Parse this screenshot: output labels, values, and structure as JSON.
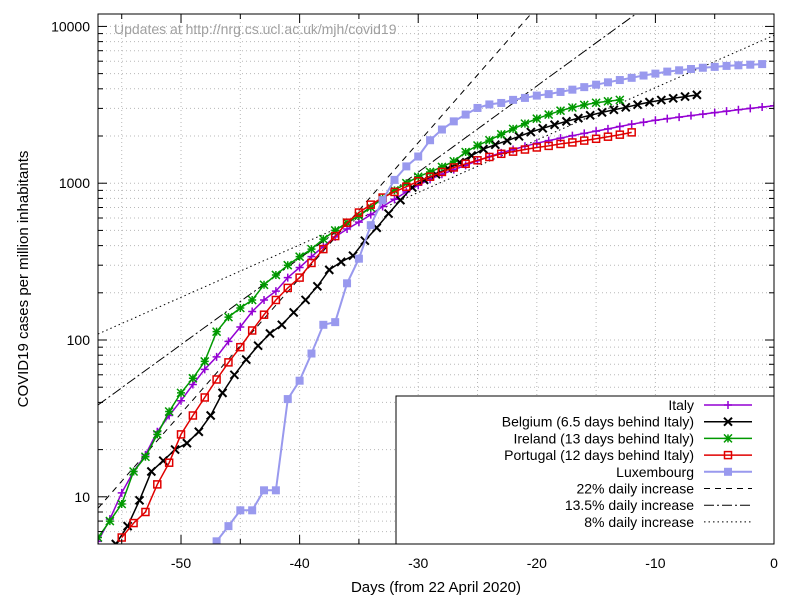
{
  "chart_data": {
    "type": "line",
    "annotation": "Updates at http://nrg.cs.ucl.ac.uk/mjh/covid19",
    "xlabel": "Days (from 22 April 2020)",
    "ylabel": "COVID19 cases per million inhabitants",
    "xlim": [
      -57,
      0
    ],
    "ylim": [
      5,
      12000
    ],
    "yscale": "log",
    "grid": true,
    "legend_position": "bottom-right",
    "x_ticks": [
      -50,
      -40,
      -30,
      -20,
      -10,
      0
    ],
    "x_tick_labels": [
      "-50",
      "-40",
      "-30",
      "-20",
      "-10",
      "0"
    ],
    "y_ticks": [
      10,
      100,
      1000,
      10000
    ],
    "y_tick_labels": [
      "10",
      "100",
      "1000",
      "10000"
    ],
    "series": [
      {
        "name": "Italy",
        "color": "#9400d3",
        "marker": "plus",
        "points": [
          [
            -57,
            5.2
          ],
          [
            -56,
            7.2
          ],
          [
            -55,
            10.6
          ],
          [
            -54,
            14.5
          ],
          [
            -53,
            18.5
          ],
          [
            -52,
            26
          ],
          [
            -51,
            33
          ],
          [
            -50,
            41
          ],
          [
            -49,
            52
          ],
          [
            -48,
            65
          ],
          [
            -47,
            78
          ],
          [
            -46,
            98
          ],
          [
            -45,
            121
          ],
          [
            -44,
            152
          ],
          [
            -43,
            180
          ],
          [
            -42,
            205
          ],
          [
            -41,
            250
          ],
          [
            -40,
            290
          ],
          [
            -39,
            340
          ],
          [
            -38,
            395
          ],
          [
            -37,
            455
          ],
          [
            -36,
            510
          ],
          [
            -35,
            565
          ],
          [
            -34,
            630
          ],
          [
            -33,
            710
          ],
          [
            -32,
            790
          ],
          [
            -31,
            880
          ],
          [
            -30,
            970
          ],
          [
            -29,
            1060
          ],
          [
            -28,
            1140
          ],
          [
            -27,
            1220
          ],
          [
            -26,
            1300
          ],
          [
            -25,
            1390
          ],
          [
            -24,
            1480
          ],
          [
            -23,
            1560
          ],
          [
            -22,
            1640
          ],
          [
            -21,
            1720
          ],
          [
            -20,
            1800
          ],
          [
            -19,
            1870
          ],
          [
            -18,
            1940
          ],
          [
            -17,
            2010
          ],
          [
            -16,
            2080
          ],
          [
            -15,
            2150
          ],
          [
            -14,
            2220
          ],
          [
            -13,
            2300
          ],
          [
            -12,
            2380
          ],
          [
            -11,
            2450
          ],
          [
            -10,
            2520
          ],
          [
            -9,
            2580
          ],
          [
            -8,
            2640
          ],
          [
            -7,
            2700
          ],
          [
            -6,
            2760
          ],
          [
            -5,
            2820
          ],
          [
            -4,
            2880
          ],
          [
            -3,
            2940
          ],
          [
            -2,
            3000
          ],
          [
            -1,
            3060
          ],
          [
            0,
            3120
          ]
        ]
      },
      {
        "name": "Belgium (6.5 days behind Italy)",
        "color": "#000000",
        "marker": "cross",
        "points": [
          [
            -55.5,
            5
          ],
          [
            -54.5,
            6.5
          ],
          [
            -53.5,
            9.5
          ],
          [
            -52.5,
            14.5
          ],
          [
            -51.5,
            17
          ],
          [
            -50.5,
            20
          ],
          [
            -49.5,
            22
          ],
          [
            -48.5,
            26
          ],
          [
            -47.5,
            33
          ],
          [
            -46.5,
            46
          ],
          [
            -45.5,
            60
          ],
          [
            -44.5,
            75
          ],
          [
            -43.5,
            92
          ],
          [
            -42.5,
            110
          ],
          [
            -41.5,
            125
          ],
          [
            -40.5,
            150
          ],
          [
            -39.5,
            180
          ],
          [
            -38.5,
            220
          ],
          [
            -37.5,
            280
          ],
          [
            -36.5,
            315
          ],
          [
            -35.5,
            345
          ],
          [
            -34.5,
            430
          ],
          [
            -33.5,
            520
          ],
          [
            -32.5,
            640
          ],
          [
            -31.5,
            780
          ],
          [
            -30.5,
            940
          ],
          [
            -29.5,
            1050
          ],
          [
            -28.5,
            1140
          ],
          [
            -27.5,
            1240
          ],
          [
            -26.5,
            1360
          ],
          [
            -25.5,
            1500
          ],
          [
            -24.5,
            1650
          ],
          [
            -23.5,
            1760
          ],
          [
            -22.5,
            1870
          ],
          [
            -21.5,
            1990
          ],
          [
            -20.5,
            2120
          ],
          [
            -19.5,
            2240
          ],
          [
            -18.5,
            2360
          ],
          [
            -17.5,
            2480
          ],
          [
            -16.5,
            2600
          ],
          [
            -15.5,
            2710
          ],
          [
            -14.5,
            2830
          ],
          [
            -13.5,
            2940
          ],
          [
            -12.5,
            3050
          ],
          [
            -11.5,
            3170
          ],
          [
            -10.5,
            3290
          ],
          [
            -9.5,
            3390
          ],
          [
            -8.5,
            3480
          ],
          [
            -7.5,
            3570
          ],
          [
            -6.5,
            3660
          ]
        ]
      },
      {
        "name": "Ireland (13 days behind Italy)",
        "color": "#009900",
        "marker": "star",
        "points": [
          [
            -57,
            5.5
          ],
          [
            -56,
            7
          ],
          [
            -55,
            9
          ],
          [
            -54,
            14.5
          ],
          [
            -53,
            18
          ],
          [
            -52,
            25
          ],
          [
            -51,
            35
          ],
          [
            -50,
            46
          ],
          [
            -49,
            57
          ],
          [
            -48,
            73
          ],
          [
            -47,
            113
          ],
          [
            -46,
            140
          ],
          [
            -45,
            160
          ],
          [
            -44,
            180
          ],
          [
            -43,
            225
          ],
          [
            -42,
            260
          ],
          [
            -41,
            300
          ],
          [
            -40,
            340
          ],
          [
            -39,
            380
          ],
          [
            -38,
            440
          ],
          [
            -37,
            500
          ],
          [
            -36,
            560
          ],
          [
            -35,
            620
          ],
          [
            -34,
            700
          ],
          [
            -33,
            800
          ],
          [
            -32,
            900
          ],
          [
            -31,
            1000
          ],
          [
            -30,
            1100
          ],
          [
            -29,
            1180
          ],
          [
            -28,
            1270
          ],
          [
            -27,
            1380
          ],
          [
            -26,
            1580
          ],
          [
            -25,
            1740
          ],
          [
            -24,
            1880
          ],
          [
            -23,
            2050
          ],
          [
            -22,
            2220
          ],
          [
            -21,
            2400
          ],
          [
            -20,
            2580
          ],
          [
            -19,
            2740
          ],
          [
            -18,
            2900
          ],
          [
            -17,
            3040
          ],
          [
            -16,
            3160
          ],
          [
            -15,
            3260
          ],
          [
            -14,
            3330
          ],
          [
            -13,
            3400
          ]
        ]
      },
      {
        "name": "Portugal (12 days behind Italy)",
        "color": "#e00000",
        "marker": "box",
        "points": [
          [
            -55,
            5.5
          ],
          [
            -54,
            6.8
          ],
          [
            -53,
            8
          ],
          [
            -52,
            12
          ],
          [
            -51,
            16.5
          ],
          [
            -50,
            25
          ],
          [
            -49,
            33
          ],
          [
            -48,
            43
          ],
          [
            -47,
            56
          ],
          [
            -46,
            72
          ],
          [
            -45,
            90
          ],
          [
            -44,
            115
          ],
          [
            -43,
            145
          ],
          [
            -42,
            180
          ],
          [
            -41,
            215
          ],
          [
            -40,
            250
          ],
          [
            -39,
            310
          ],
          [
            -38,
            380
          ],
          [
            -37,
            460
          ],
          [
            -36,
            560
          ],
          [
            -35,
            650
          ],
          [
            -34,
            730
          ],
          [
            -33,
            810
          ],
          [
            -32,
            880
          ],
          [
            -31,
            950
          ],
          [
            -30,
            1030
          ],
          [
            -29,
            1100
          ],
          [
            -28,
            1180
          ],
          [
            -27,
            1260
          ],
          [
            -26,
            1330
          ],
          [
            -25,
            1400
          ],
          [
            -24,
            1470
          ],
          [
            -23,
            1540
          ],
          [
            -22,
            1590
          ],
          [
            -21,
            1640
          ],
          [
            -20,
            1690
          ],
          [
            -19,
            1730
          ],
          [
            -18,
            1780
          ],
          [
            -17,
            1820
          ],
          [
            -16,
            1870
          ],
          [
            -15,
            1920
          ],
          [
            -14,
            1980
          ],
          [
            -13,
            2040
          ],
          [
            -12,
            2110
          ]
        ]
      },
      {
        "name": "Luxembourg",
        "color": "#9999ee",
        "marker": "filled-box",
        "points": [
          [
            -47,
            5.2
          ],
          [
            -46,
            6.5
          ],
          [
            -45,
            8.2
          ],
          [
            -44,
            8.2
          ],
          [
            -43,
            11
          ],
          [
            -42,
            11
          ],
          [
            -41,
            42
          ],
          [
            -40,
            55
          ],
          [
            -39,
            82
          ],
          [
            -38,
            125
          ],
          [
            -37,
            130
          ],
          [
            -36,
            230
          ],
          [
            -35,
            330
          ],
          [
            -34,
            540
          ],
          [
            -33,
            780
          ],
          [
            -32,
            1050
          ],
          [
            -31,
            1280
          ],
          [
            -30,
            1480
          ],
          [
            -29,
            1880
          ],
          [
            -28,
            2200
          ],
          [
            -27,
            2480
          ],
          [
            -26,
            2740
          ],
          [
            -25,
            3020
          ],
          [
            -24,
            3180
          ],
          [
            -23,
            3250
          ],
          [
            -22,
            3400
          ],
          [
            -21,
            3500
          ],
          [
            -20,
            3620
          ],
          [
            -19,
            3700
          ],
          [
            -18,
            3820
          ],
          [
            -17,
            3950
          ],
          [
            -16,
            4100
          ],
          [
            -15,
            4250
          ],
          [
            -14,
            4400
          ],
          [
            -13,
            4550
          ],
          [
            -12,
            4700
          ],
          [
            -11,
            4860
          ],
          [
            -10,
            5000
          ],
          [
            -9,
            5150
          ],
          [
            -8,
            5250
          ],
          [
            -7,
            5350
          ],
          [
            -6,
            5450
          ],
          [
            -5,
            5520
          ],
          [
            -4,
            5600
          ],
          [
            -3,
            5650
          ],
          [
            -2,
            5700
          ],
          [
            -1,
            5750
          ]
        ]
      },
      {
        "name": "22% daily increase",
        "color": "#000000",
        "dash": "6,5",
        "rate": 0.22,
        "anchor": [
          -36,
          550
        ]
      },
      {
        "name": "13.5% daily increase",
        "color": "#000000",
        "dash": "10,3,2,3",
        "rate": 0.135,
        "anchor": [
          -36,
          550
        ]
      },
      {
        "name": "8% daily increase",
        "color": "#000000",
        "dash": "1.5,3",
        "rate": 0.08,
        "anchor": [
          -36,
          550
        ]
      }
    ]
  }
}
